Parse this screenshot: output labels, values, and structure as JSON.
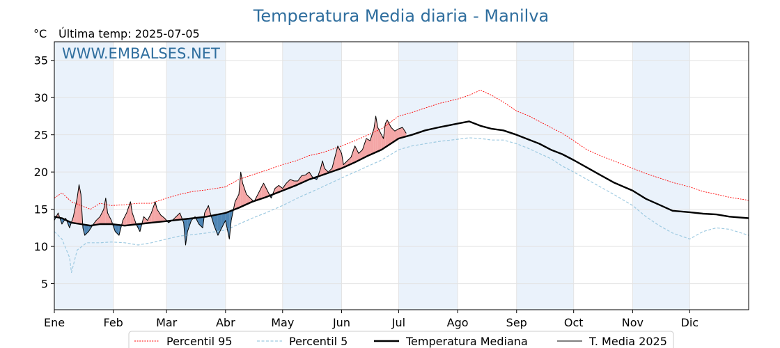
{
  "chart_data": {
    "type": "line",
    "title": "Temperatura Media diaria - Manilva",
    "unit_label": "°C",
    "last_temp_label": "Última temp: 2025-07-05",
    "watermark": "WWW.EMBALSES.NET",
    "months": [
      "Ene",
      "Feb",
      "Mar",
      "Abr",
      "May",
      "Jun",
      "Jul",
      "Ago",
      "Sep",
      "Oct",
      "Nov",
      "Dic"
    ],
    "month_start_day": [
      1,
      32,
      60,
      91,
      121,
      152,
      182,
      213,
      244,
      274,
      305,
      335
    ],
    "xlim": [
      1,
      366
    ],
    "ylim": [
      1.5,
      37.5
    ],
    "yticks": [
      5,
      10,
      15,
      20,
      25,
      30,
      35
    ],
    "grid": true,
    "legend_position": "bottom-center",
    "colors": {
      "p95": "#ff0000",
      "p5": "#9ecae1",
      "median": "#000000",
      "current": "#000000",
      "above_fill": "#f4a6a6",
      "below_fill": "#4f86b5",
      "band": "#eaf2fb"
    },
    "series": [
      {
        "name": "Percentil 95",
        "style": "dotted-red",
        "points": [
          [
            1,
            16.5
          ],
          [
            5,
            17.2
          ],
          [
            10,
            16.0
          ],
          [
            15,
            15.5
          ],
          [
            20,
            15.0
          ],
          [
            25,
            15.8
          ],
          [
            31,
            15.5
          ],
          [
            38,
            15.6
          ],
          [
            45,
            15.8
          ],
          [
            52,
            15.8
          ],
          [
            60,
            16.5
          ],
          [
            67,
            17.0
          ],
          [
            74,
            17.4
          ],
          [
            81,
            17.6
          ],
          [
            91,
            18.0
          ],
          [
            98,
            19.0
          ],
          [
            105,
            19.6
          ],
          [
            112,
            20.2
          ],
          [
            121,
            21.0
          ],
          [
            128,
            21.5
          ],
          [
            135,
            22.2
          ],
          [
            142,
            22.6
          ],
          [
            152,
            23.5
          ],
          [
            159,
            24.2
          ],
          [
            166,
            25.0
          ],
          [
            173,
            25.8
          ],
          [
            182,
            27.5
          ],
          [
            189,
            28.0
          ],
          [
            196,
            28.6
          ],
          [
            203,
            29.2
          ],
          [
            213,
            29.8
          ],
          [
            219,
            30.3
          ],
          [
            225,
            31.0
          ],
          [
            231,
            30.3
          ],
          [
            237,
            29.4
          ],
          [
            244,
            28.2
          ],
          [
            250,
            27.6
          ],
          [
            256,
            26.8
          ],
          [
            262,
            26.0
          ],
          [
            268,
            25.2
          ],
          [
            274,
            24.2
          ],
          [
            281,
            23.0
          ],
          [
            288,
            22.2
          ],
          [
            295,
            21.5
          ],
          [
            305,
            20.5
          ],
          [
            312,
            19.8
          ],
          [
            319,
            19.2
          ],
          [
            326,
            18.6
          ],
          [
            335,
            18.0
          ],
          [
            342,
            17.4
          ],
          [
            349,
            17.0
          ],
          [
            356,
            16.6
          ],
          [
            366,
            16.2
          ]
        ]
      },
      {
        "name": "Percentil 5",
        "style": "dashed-lightblue",
        "points": [
          [
            1,
            12.0
          ],
          [
            5,
            11.0
          ],
          [
            9,
            8.5
          ],
          [
            10,
            6.5
          ],
          [
            13,
            9.5
          ],
          [
            18,
            10.5
          ],
          [
            25,
            10.5
          ],
          [
            31,
            10.6
          ],
          [
            38,
            10.5
          ],
          [
            45,
            10.2
          ],
          [
            52,
            10.5
          ],
          [
            60,
            11.0
          ],
          [
            67,
            11.4
          ],
          [
            74,
            11.6
          ],
          [
            81,
            11.8
          ],
          [
            91,
            12.2
          ],
          [
            98,
            13.0
          ],
          [
            105,
            13.8
          ],
          [
            112,
            14.5
          ],
          [
            121,
            15.5
          ],
          [
            128,
            16.4
          ],
          [
            135,
            17.2
          ],
          [
            142,
            18.0
          ],
          [
            152,
            19.2
          ],
          [
            159,
            20.0
          ],
          [
            166,
            20.8
          ],
          [
            173,
            21.6
          ],
          [
            182,
            23.0
          ],
          [
            189,
            23.5
          ],
          [
            196,
            23.8
          ],
          [
            203,
            24.1
          ],
          [
            213,
            24.4
          ],
          [
            219,
            24.6
          ],
          [
            225,
            24.5
          ],
          [
            231,
            24.3
          ],
          [
            237,
            24.3
          ],
          [
            244,
            23.8
          ],
          [
            250,
            23.2
          ],
          [
            256,
            22.5
          ],
          [
            262,
            21.8
          ],
          [
            268,
            20.8
          ],
          [
            274,
            20.0
          ],
          [
            281,
            19.0
          ],
          [
            288,
            18.0
          ],
          [
            295,
            17.0
          ],
          [
            305,
            15.5
          ],
          [
            312,
            14.0
          ],
          [
            319,
            12.8
          ],
          [
            326,
            11.8
          ],
          [
            335,
            11.0
          ],
          [
            342,
            12.0
          ],
          [
            349,
            12.5
          ],
          [
            356,
            12.3
          ],
          [
            366,
            11.5
          ]
        ]
      },
      {
        "name": "Temperatura Mediana",
        "style": "thick-black",
        "points": [
          [
            1,
            14.0
          ],
          [
            5,
            13.8
          ],
          [
            10,
            13.2
          ],
          [
            15,
            13.0
          ],
          [
            20,
            12.8
          ],
          [
            25,
            13.0
          ],
          [
            31,
            13.0
          ],
          [
            38,
            12.8
          ],
          [
            45,
            13.0
          ],
          [
            52,
            13.2
          ],
          [
            60,
            13.4
          ],
          [
            67,
            13.6
          ],
          [
            74,
            13.8
          ],
          [
            81,
            14.0
          ],
          [
            91,
            14.5
          ],
          [
            98,
            15.2
          ],
          [
            105,
            16.0
          ],
          [
            112,
            16.6
          ],
          [
            121,
            17.5
          ],
          [
            128,
            18.2
          ],
          [
            135,
            19.0
          ],
          [
            142,
            19.6
          ],
          [
            152,
            20.5
          ],
          [
            159,
            21.3
          ],
          [
            166,
            22.2
          ],
          [
            173,
            23.0
          ],
          [
            182,
            24.5
          ],
          [
            189,
            25.0
          ],
          [
            196,
            25.6
          ],
          [
            203,
            26.0
          ],
          [
            213,
            26.5
          ],
          [
            219,
            26.8
          ],
          [
            225,
            26.2
          ],
          [
            231,
            25.8
          ],
          [
            237,
            25.6
          ],
          [
            244,
            25.0
          ],
          [
            250,
            24.4
          ],
          [
            256,
            23.8
          ],
          [
            262,
            23.0
          ],
          [
            268,
            22.4
          ],
          [
            274,
            21.6
          ],
          [
            281,
            20.6
          ],
          [
            288,
            19.6
          ],
          [
            295,
            18.6
          ],
          [
            305,
            17.5
          ],
          [
            312,
            16.4
          ],
          [
            319,
            15.6
          ],
          [
            326,
            14.8
          ],
          [
            335,
            14.6
          ],
          [
            342,
            14.4
          ],
          [
            349,
            14.3
          ],
          [
            356,
            14.0
          ],
          [
            366,
            13.8
          ]
        ]
      },
      {
        "name": "T. Media 2025",
        "style": "thin-black",
        "points": [
          [
            1,
            13.5
          ],
          [
            3,
            14.5
          ],
          [
            5,
            13.0
          ],
          [
            7,
            13.8
          ],
          [
            9,
            12.5
          ],
          [
            11,
            14.0
          ],
          [
            13,
            16.5
          ],
          [
            14,
            18.3
          ],
          [
            15,
            17.0
          ],
          [
            16,
            12.5
          ],
          [
            17,
            11.5
          ],
          [
            19,
            12.0
          ],
          [
            21,
            12.8
          ],
          [
            23,
            13.5
          ],
          [
            25,
            14.0
          ],
          [
            27,
            15.0
          ],
          [
            28,
            16.5
          ],
          [
            29,
            14.5
          ],
          [
            31,
            13.5
          ],
          [
            33,
            12.0
          ],
          [
            35,
            11.5
          ],
          [
            37,
            13.5
          ],
          [
            39,
            14.5
          ],
          [
            41,
            16.0
          ],
          [
            42,
            14.5
          ],
          [
            44,
            13.0
          ],
          [
            46,
            12.0
          ],
          [
            48,
            14.0
          ],
          [
            50,
            13.5
          ],
          [
            52,
            14.5
          ],
          [
            54,
            16.0
          ],
          [
            55,
            15.0
          ],
          [
            57,
            14.2
          ],
          [
            59,
            13.8
          ],
          [
            61,
            13.2
          ],
          [
            63,
            13.5
          ],
          [
            65,
            14.0
          ],
          [
            67,
            14.5
          ],
          [
            69,
            13.2
          ],
          [
            70,
            10.2
          ],
          [
            71,
            12.0
          ],
          [
            73,
            13.5
          ],
          [
            75,
            14.0
          ],
          [
            77,
            13.0
          ],
          [
            79,
            12.5
          ],
          [
            80,
            14.5
          ],
          [
            82,
            15.5
          ],
          [
            83,
            14.5
          ],
          [
            85,
            12.8
          ],
          [
            87,
            11.5
          ],
          [
            89,
            12.5
          ],
          [
            91,
            13.5
          ],
          [
            93,
            11.0
          ],
          [
            94,
            13.5
          ],
          [
            96,
            16.0
          ],
          [
            98,
            17.0
          ],
          [
            99,
            20.0
          ],
          [
            100,
            18.5
          ],
          [
            102,
            17.0
          ],
          [
            104,
            16.5
          ],
          [
            106,
            16.0
          ],
          [
            108,
            17.0
          ],
          [
            110,
            18.0
          ],
          [
            111,
            18.5
          ],
          [
            113,
            17.5
          ],
          [
            115,
            16.5
          ],
          [
            117,
            17.8
          ],
          [
            119,
            18.2
          ],
          [
            121,
            17.8
          ],
          [
            123,
            18.5
          ],
          [
            125,
            19.0
          ],
          [
            127,
            18.8
          ],
          [
            129,
            18.8
          ],
          [
            131,
            19.5
          ],
          [
            133,
            19.6
          ],
          [
            135,
            20.0
          ],
          [
            137,
            19.2
          ],
          [
            139,
            19.0
          ],
          [
            141,
            20.5
          ],
          [
            142,
            21.5
          ],
          [
            143,
            20.5
          ],
          [
            145,
            20.0
          ],
          [
            147,
            20.5
          ],
          [
            149,
            22.5
          ],
          [
            150,
            23.5
          ],
          [
            152,
            22.5
          ],
          [
            153,
            21.0
          ],
          [
            155,
            21.5
          ],
          [
            157,
            22.0
          ],
          [
            159,
            23.5
          ],
          [
            161,
            22.5
          ],
          [
            163,
            23.0
          ],
          [
            165,
            24.5
          ],
          [
            167,
            24.2
          ],
          [
            169,
            25.8
          ],
          [
            170,
            27.5
          ],
          [
            171,
            26.0
          ],
          [
            173,
            25.0
          ],
          [
            174,
            24.5
          ],
          [
            175,
            26.5
          ],
          [
            176,
            27.0
          ],
          [
            178,
            26.0
          ],
          [
            180,
            25.5
          ],
          [
            182,
            25.8
          ],
          [
            184,
            26.0
          ],
          [
            186,
            25.2
          ]
        ]
      }
    ]
  }
}
